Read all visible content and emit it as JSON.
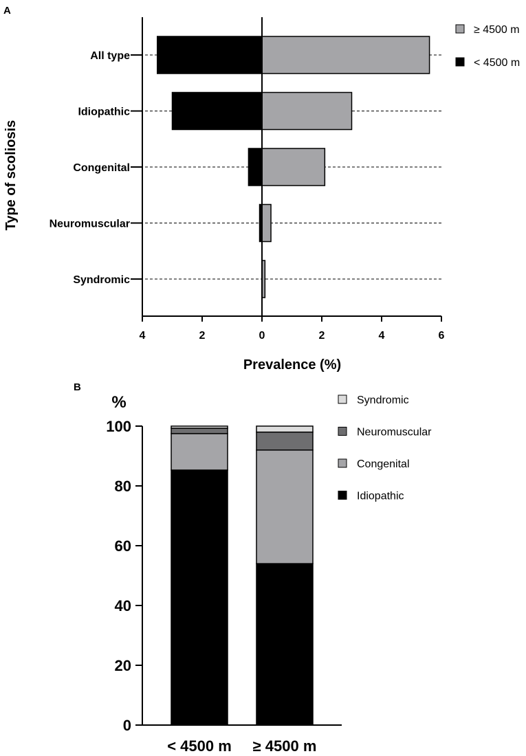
{
  "panels": {
    "a_label": "A",
    "b_label": "B"
  },
  "colors": {
    "black": "#000000",
    "gray": "#a5a5a8",
    "dark_gray": "#6e6e70",
    "light_gray": "#dcdcdc",
    "white": "#ffffff"
  },
  "chart_data": [
    {
      "id": "A",
      "type": "bar",
      "orientation": "horizontal-butterfly",
      "title": "",
      "ylabel": "Type of scoliosis",
      "xlabel": "Prevalence (%)",
      "categories": [
        "All type",
        "Idiopathic",
        "Congenital",
        "Neuromuscular",
        "Syndromic"
      ],
      "series": [
        {
          "name": "≥ 4500 m",
          "side": "right",
          "color": "#a5a5a8",
          "values": [
            5.6,
            3.0,
            2.1,
            0.3,
            0.1
          ]
        },
        {
          "name": "< 4500 m",
          "side": "left",
          "color": "#000000",
          "values": [
            3.5,
            3.0,
            0.45,
            0.08,
            0.0
          ]
        }
      ],
      "xlim": [
        -4,
        6
      ],
      "xticks": [
        -4,
        -2,
        0,
        2,
        4,
        6
      ],
      "xtick_labels": [
        "4",
        "2",
        "0",
        "2",
        "4",
        "6"
      ],
      "grid": "dashed horizontal per category",
      "legend": "top-right"
    },
    {
      "id": "B",
      "type": "bar",
      "orientation": "stacked",
      "title": "",
      "ylabel": "%",
      "xlabel": "",
      "categories": [
        "< 4500 m",
        "≥ 4500 m"
      ],
      "series": [
        {
          "name": "Idiopathic",
          "color": "#000000",
          "values": [
            85.3,
            54.0
          ]
        },
        {
          "name": "Congenital",
          "color": "#a5a5a8",
          "values": [
            12.2,
            38.0
          ]
        },
        {
          "name": "Neuromuscular",
          "color": "#6e6e70",
          "values": [
            1.8,
            6.0
          ]
        },
        {
          "name": "Syndromic",
          "color": "#dcdcdc",
          "values": [
            0.7,
            2.0
          ]
        }
      ],
      "ylim": [
        0,
        100
      ],
      "yticks": [
        0,
        20,
        40,
        60,
        80,
        100
      ],
      "legend": "top-right",
      "legend_order": [
        "Syndromic",
        "Neuromuscular",
        "Congenital",
        "Idiopathic"
      ]
    }
  ]
}
